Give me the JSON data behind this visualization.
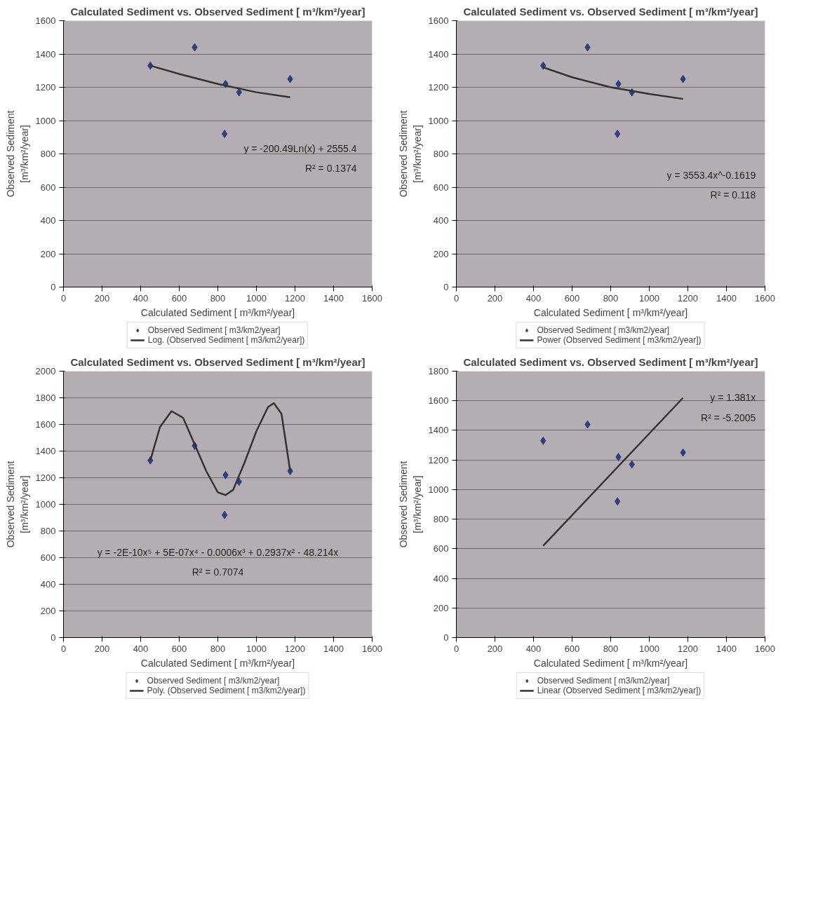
{
  "chart_data": [
    {
      "type": "scatter",
      "title": "Calculated Sediment vs. Observed Sediment [ m³/km²/year]",
      "xlabel": "Calculated Sediment [ m³/km²/year]",
      "ylabel": "Observed Sediment\n[m³/km²/year]",
      "xlim": [
        0,
        1600
      ],
      "xticks": [
        0,
        200,
        400,
        600,
        800,
        1000,
        1200,
        1400,
        1600
      ],
      "ylim": [
        0,
        1600
      ],
      "yticks": [
        0,
        200,
        400,
        600,
        800,
        1000,
        1200,
        1400,
        1600
      ],
      "grid": "y",
      "legend": "bottom",
      "marker": "diamond",
      "annotations": [
        "y = -200.49Ln(x) + 2555.4",
        "R² = 0.1374"
      ],
      "series": [
        {
          "name": "Observed Sediment [ m3/km2/year]",
          "color": "#2e3f80",
          "x": [
            450,
            680,
            840,
            835,
            910,
            1175
          ],
          "values": [
            1330,
            1440,
            1220,
            920,
            1170,
            1250
          ]
        },
        {
          "name": "Log. (Observed Sediment [ m3/km2/year])",
          "type": "line",
          "marker": "none",
          "color": "#333333",
          "x": [
            450,
            600,
            800,
            1000,
            1175
          ],
          "values": [
            1330,
            1280,
            1220,
            1170,
            1140
          ]
        }
      ]
    },
    {
      "type": "scatter",
      "title": "Calculated Sediment vs. Observed Sediment [ m³/km²/year]",
      "xlabel": "Calculated Sediment [ m³/km²/year]",
      "ylabel": "Observed Sediment\n[m³/km²/year]",
      "xlim": [
        0,
        1600
      ],
      "xticks": [
        0,
        200,
        400,
        600,
        800,
        1000,
        1200,
        1400,
        1600
      ],
      "ylim": [
        0,
        1600
      ],
      "yticks": [
        0,
        200,
        400,
        600,
        800,
        1000,
        1200,
        1400,
        1600
      ],
      "grid": "y",
      "legend": "bottom",
      "marker": "diamond",
      "annotations": [
        "y = 3553.4x^-0.1619",
        "R² = 0.118"
      ],
      "series": [
        {
          "name": "Observed Sediment [ m3/km2/year]",
          "color": "#2e3f80",
          "x": [
            450,
            680,
            840,
            835,
            910,
            1175
          ],
          "values": [
            1330,
            1440,
            1220,
            920,
            1170,
            1250
          ]
        },
        {
          "name": "Power (Observed Sediment [ m3/km2/year])",
          "type": "line",
          "marker": "none",
          "color": "#333333",
          "x": [
            450,
            600,
            800,
            1000,
            1175
          ],
          "values": [
            1320,
            1260,
            1200,
            1160,
            1130
          ]
        }
      ]
    },
    {
      "type": "scatter",
      "title": "Calculated Sediment vs. Observed Sediment [ m³/km²/year]",
      "xlabel": "Calculated Sediment [ m³/km²/year]",
      "ylabel": "Observed Sediment\n[m³/km²/year]",
      "xlim": [
        0,
        1600
      ],
      "xticks": [
        0,
        200,
        400,
        600,
        800,
        1000,
        1200,
        1400,
        1600
      ],
      "ylim": [
        0,
        2000
      ],
      "yticks": [
        0,
        200,
        400,
        600,
        800,
        1000,
        1200,
        1400,
        1600,
        1800,
        2000
      ],
      "grid": "y",
      "legend": "bottom",
      "marker": "diamond",
      "annotations": [
        "y = -2E-10x⁵ + 5E-07x⁴ - 0.0006x³ + 0.2937x² - 48.214x",
        "R² = 0.7074"
      ],
      "series": [
        {
          "name": "Observed Sediment [ m3/km2/year]",
          "color": "#2e3f80",
          "x": [
            450,
            680,
            840,
            835,
            910,
            1175
          ],
          "values": [
            1330,
            1440,
            1220,
            920,
            1170,
            1250
          ]
        },
        {
          "name": "Poly. (Observed Sediment [ m3/km2/year])",
          "type": "line",
          "marker": "none",
          "color": "#333333",
          "x": [
            450,
            500,
            560,
            620,
            680,
            740,
            800,
            840,
            880,
            940,
            1000,
            1060,
            1090,
            1130,
            1175
          ],
          "values": [
            1330,
            1580,
            1700,
            1650,
            1450,
            1250,
            1090,
            1070,
            1110,
            1320,
            1550,
            1730,
            1760,
            1680,
            1250
          ]
        }
      ]
    },
    {
      "type": "scatter",
      "title": "Calculated Sediment vs. Observed Sediment [ m³/km²/year]",
      "xlabel": "Calculated Sediment [ m³/km²/year]",
      "ylabel": "Observed Sediment\n[m³/km²/year]",
      "xlim": [
        0,
        1600
      ],
      "xticks": [
        0,
        200,
        400,
        600,
        800,
        1000,
        1200,
        1400,
        1600
      ],
      "ylim": [
        0,
        1800
      ],
      "yticks": [
        0,
        200,
        400,
        600,
        800,
        1000,
        1200,
        1400,
        1600,
        1800
      ],
      "grid": "y",
      "legend": "bottom",
      "marker": "diamond",
      "annotations": [
        "y = 1.381x",
        "R² = -5.2005"
      ],
      "series": [
        {
          "name": "Observed Sediment [ m3/km2/year]",
          "color": "#2e3f80",
          "x": [
            450,
            680,
            840,
            835,
            910,
            1175
          ],
          "values": [
            1330,
            1440,
            1220,
            920,
            1170,
            1250
          ]
        },
        {
          "name": "Linear (Observed Sediment [ m3/km2/year])",
          "type": "line",
          "marker": "none",
          "color": "#333333",
          "x": [
            450,
            1175
          ],
          "values": [
            620,
            1620
          ]
        }
      ]
    }
  ]
}
